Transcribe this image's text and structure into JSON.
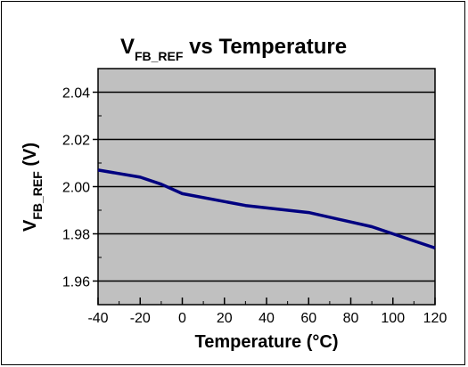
{
  "chart_data": {
    "type": "line",
    "title": {
      "main": "V",
      "subscript": "FB_REF",
      "rest": " vs Temperature"
    },
    "xlabel": "Temperature (°C)",
    "ylabel": {
      "main": "V",
      "subscript": "FB_REF",
      "rest": " (V)"
    },
    "xlim": [
      -40,
      120
    ],
    "ylim": [
      1.95,
      2.05
    ],
    "x_ticks": [
      -40,
      -20,
      0,
      20,
      40,
      60,
      80,
      100,
      120
    ],
    "y_ticks": [
      1.96,
      1.98,
      2.0,
      2.02,
      2.04
    ],
    "x_tick_labels": [
      "-40",
      "-20",
      "0",
      "20",
      "40",
      "60",
      "80",
      "100",
      "120"
    ],
    "y_tick_labels": [
      "1.96",
      "1.98",
      "2.00",
      "2.02",
      "2.04"
    ],
    "grid": "horizontal",
    "series": [
      {
        "color": "#000080",
        "x": [
          -40,
          -20,
          -10,
          0,
          30,
          60,
          90,
          100,
          120
        ],
        "y": [
          2.007,
          2.004,
          2.001,
          1.997,
          1.992,
          1.989,
          1.983,
          1.98,
          1.974
        ]
      }
    ],
    "colors": {
      "plot_bg": "#c0c0c0",
      "line": "#000080",
      "grid": "#000000"
    }
  }
}
